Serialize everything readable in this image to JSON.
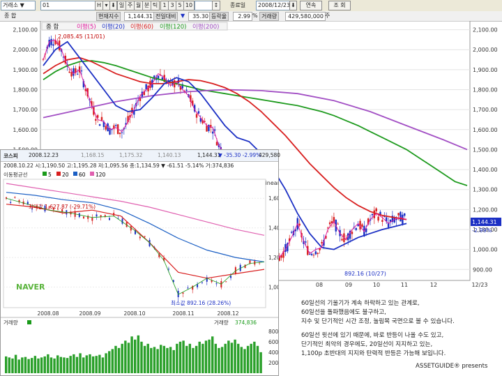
{
  "toolbar": {
    "market": "거래소",
    "code": "01",
    "period_buttons": [
      "H",
      "일",
      "주",
      "월",
      "분",
      "틱"
    ],
    "interval_buttons": [
      "1",
      "3",
      "5",
      "10"
    ],
    "end_date_label": "종료일",
    "end_date": "2008/12/23",
    "continuous_label": "연속",
    "query_label": "조 회"
  },
  "infobar": {
    "name": "종     합",
    "price_label": "현재지수",
    "price": "1,144.31",
    "change_label": "전일대비",
    "change_arrow": "▼",
    "change": "35.30",
    "rate_label": "등락율",
    "rate": "2.99",
    "rate_unit": "%",
    "volume_label": "거래량",
    "volume": "429,580,000",
    "volume_unit": "주"
  },
  "main_chart": {
    "legend_prefix": "종     합",
    "legend": [
      {
        "name": "이평(5)",
        "color": "#e0199c"
      },
      {
        "name": "이평(20)",
        "color": "#1b2fc4"
      },
      {
        "name": "이평(60)",
        "color": "#d81e1e"
      },
      {
        "name": "이평(120)",
        "color": "#1d9a1d"
      },
      {
        "name": "이평(200)",
        "color": "#a24fc4"
      }
    ],
    "high_label": "2,085.45 (11/01)",
    "low_label": "892.16 (10/27)",
    "last_value_label": "1,144.31",
    "last_change_label": "-2.99%",
    "x_ticks": [
      "08",
      "09",
      "10",
      "11",
      "12",
      "12/23"
    ]
  },
  "naver_panel": {
    "tab_title": "코스피",
    "tab_values": [
      "2008.12.23",
      "1,168.15",
      "1,175.32",
      "1,140.13",
      "1,144.31",
      "▼ -35.30 -2.99%",
      "429,580"
    ],
    "ohlc_line": "2008.10.22  시:1,190.50  고:1,195.28  저:1,095.56  종:1,134.59  ▼  -61.51  -5.14%  거:374,836",
    "ma_label": "이동평균선",
    "ma_legend": [
      {
        "name": "5",
        "color": "#1a9a1a"
      },
      {
        "name": "20",
        "color": "#d81e1e"
      },
      {
        "name": "60",
        "color": "#1b5fc4"
      },
      {
        "name": "120",
        "color": "#e060b0"
      }
    ],
    "scale_label": "linear",
    "high_label": "최대값 1,627.87 (-29.71%)",
    "low_label": "최소값 892.16 (28.26%)",
    "logo": "NAVER",
    "x_ticks": [
      "2008.08",
      "2008.09",
      "2008.10",
      "2008.11",
      "2008.12"
    ],
    "volume_title": "거래량",
    "volume_value_label": "거래량",
    "volume_value": "374,836"
  },
  "notes": [
    "60일선의 기울기가 계속 하락하고 있는 관계로,",
    "60일선을 돌파했음에도 불구하고,",
    "지수 및 단기적인 시간 조정, 눌림목 국면으로 볼 수 있습니다.",
    "60일선 윗선에 있기 때문에, 바로 반등이 나올 수도 있고,",
    "단기적인 최악의 경우에도, 20일선이 지지하고 있는,",
    "1,100p 초반대의 지지와 탄력적 반등은 가능해 보입니다."
  ],
  "signature": "ASSETGUIDE® presents",
  "chart_data": [
    {
      "type": "line",
      "title": "",
      "y_axis_ticks": [
        900,
        1000,
        1100,
        1200,
        1300,
        1400,
        1500,
        1600,
        1700,
        1800,
        1900,
        2000,
        2100
      ],
      "ylim": [
        880,
        2130
      ],
      "x_labels": [
        "08",
        "09",
        "10",
        "11",
        "12",
        "12/23"
      ],
      "series": [
        {
          "name": "이평(120)",
          "color": "#1d9a1d",
          "x": [
            0,
            20,
            40,
            60,
            80,
            100,
            120,
            140,
            160,
            180,
            200,
            220,
            240,
            260,
            280,
            300,
            320,
            340,
            360,
            380,
            400,
            420,
            440,
            460,
            480,
            500,
            520,
            540,
            560,
            580,
            600,
            620,
            640,
            660,
            680,
            700
          ],
          "values": [
            1850,
            1890,
            1920,
            1940,
            1945,
            1935,
            1920,
            1900,
            1880,
            1860,
            1845,
            1830,
            1815,
            1800,
            1790,
            1780,
            1770,
            1760,
            1750,
            1740,
            1730,
            1720,
            1705,
            1690,
            1670,
            1645,
            1620,
            1590,
            1560,
            1530,
            1500,
            1460,
            1420,
            1380,
            1340,
            1320
          ]
        },
        {
          "name": "이평(200)",
          "color": "#a24fc4",
          "x": [
            0,
            60,
            120,
            180,
            240,
            300,
            360,
            420,
            480,
            540,
            600,
            660,
            700
          ],
          "values": [
            1660,
            1700,
            1740,
            1770,
            1790,
            1800,
            1795,
            1780,
            1745,
            1690,
            1620,
            1550,
            1500
          ]
        },
        {
          "name": "이평(60)",
          "color": "#d81e1e",
          "x": [
            0,
            20,
            40,
            60,
            80,
            100,
            120,
            140,
            160,
            180,
            200,
            220,
            240,
            260,
            280,
            300,
            320,
            340,
            360,
            380,
            400,
            420,
            440,
            460,
            480,
            500,
            520,
            540,
            560,
            580,
            600
          ],
          "values": [
            1880,
            1920,
            1950,
            1960,
            1940,
            1910,
            1880,
            1860,
            1840,
            1830,
            1830,
            1840,
            1850,
            1845,
            1830,
            1810,
            1780,
            1740,
            1690,
            1630,
            1570,
            1500,
            1430,
            1370,
            1310,
            1260,
            1220,
            1190,
            1170,
            1160,
            1150
          ]
        },
        {
          "name": "이평(20)",
          "color": "#1b2fc4",
          "x": [
            0,
            20,
            40,
            60,
            80,
            100,
            120,
            140,
            160,
            180,
            200,
            220,
            240,
            260,
            280,
            300,
            320,
            340,
            360,
            380,
            400,
            420,
            440,
            460,
            480,
            500,
            520,
            540,
            560,
            580,
            600
          ],
          "values": [
            1920,
            2000,
            2040,
            1960,
            1880,
            1800,
            1720,
            1690,
            1700,
            1760,
            1830,
            1860,
            1840,
            1780,
            1700,
            1620,
            1560,
            1540,
            1480,
            1400,
            1300,
            1180,
            1080,
            1010,
            1000,
            1030,
            1060,
            1080,
            1100,
            1115,
            1130
          ]
        },
        {
          "name": "이평(5)",
          "color": "#e0199c",
          "x": [
            0,
            10,
            20,
            30,
            40,
            50,
            60,
            70,
            80,
            90,
            100,
            110,
            120,
            130,
            140,
            150,
            160,
            170,
            180,
            190,
            200,
            210,
            220,
            230,
            240,
            250,
            260,
            270,
            280,
            290,
            300,
            310,
            320,
            330,
            340,
            350,
            360,
            370,
            380,
            390,
            400,
            410,
            420,
            430,
            440,
            450,
            460,
            470,
            480,
            490,
            500,
            510,
            520,
            530,
            540,
            550,
            560,
            570,
            580,
            590,
            600
          ],
          "values": [
            1950,
            2040,
            2050,
            2000,
            1920,
            1880,
            1900,
            1810,
            1720,
            1650,
            1640,
            1600,
            1610,
            1590,
            1640,
            1700,
            1770,
            1800,
            1830,
            1880,
            1860,
            1820,
            1840,
            1800,
            1770,
            1700,
            1660,
            1620,
            1610,
            1520,
            1480,
            1420,
            1380,
            1460,
            1420,
            1330,
            1250,
            1180,
            1050,
            960,
            1000,
            1060,
            1130,
            1040,
            980,
            1000,
            1010,
            1100,
            1140,
            1080,
            1050,
            1100,
            1130,
            1090,
            1150,
            1180,
            1160,
            1130,
            1150,
            1160,
            1150
          ]
        }
      ]
    },
    {
      "type": "line",
      "title": "",
      "y_axis_ticks": [
        1000,
        1200,
        1400,
        1600
      ],
      "ylim": [
        880,
        1700
      ],
      "x_labels": [
        "2008.08",
        "2008.09",
        "2008.10",
        "2008.11",
        "2008.12"
      ],
      "series": [
        {
          "name": "120",
          "color": "#e060b0",
          "x": [
            0,
            40,
            80,
            120,
            160,
            200,
            240,
            280,
            320,
            360
          ],
          "values": [
            1700,
            1670,
            1640,
            1610,
            1580,
            1540,
            1490,
            1440,
            1390,
            1350
          ]
        },
        {
          "name": "60",
          "color": "#1b5fc4",
          "x": [
            0,
            40,
            80,
            120,
            160,
            200,
            240,
            280,
            320,
            360
          ],
          "values": [
            1640,
            1620,
            1590,
            1570,
            1520,
            1430,
            1330,
            1250,
            1200,
            1170
          ]
        },
        {
          "name": "20",
          "color": "#d81e1e",
          "x": [
            0,
            40,
            80,
            120,
            160,
            200,
            240,
            280,
            320,
            360
          ],
          "values": [
            1560,
            1540,
            1500,
            1520,
            1480,
            1300,
            1100,
            1060,
            1090,
            1120
          ]
        },
        {
          "name": "5",
          "color": "#1a9a1a",
          "x": [
            0,
            30,
            60,
            90,
            120,
            150,
            180,
            200,
            220,
            240,
            260,
            280,
            300,
            320,
            340,
            360
          ],
          "values": [
            1600,
            1560,
            1520,
            1500,
            1470,
            1480,
            1380,
            1300,
            1180,
            950,
            1000,
            1060,
            1020,
            1110,
            1160,
            1170
          ]
        }
      ]
    },
    {
      "type": "bar",
      "title": "",
      "y_axis_ticks": [
        0,
        200,
        400,
        600,
        800
      ],
      "ylim": [
        0,
        850
      ],
      "values": [
        320,
        300,
        280,
        350,
        260,
        300,
        310,
        270,
        290,
        330,
        280,
        300,
        320,
        360,
        300,
        280,
        340,
        310,
        300,
        290,
        330,
        360,
        310,
        380,
        300,
        340,
        360,
        320,
        330,
        350,
        300,
        380,
        420,
        460,
        520,
        480,
        560,
        620,
        580,
        700,
        640,
        720,
        600,
        520,
        560,
        480,
        500,
        460,
        540,
        520,
        480,
        500,
        440,
        560,
        600,
        620,
        520,
        560,
        480,
        520,
        600,
        560,
        620,
        640,
        700,
        560,
        480,
        500,
        560,
        620,
        580,
        640,
        560,
        500,
        460,
        520,
        560,
        600,
        520,
        400
      ]
    }
  ]
}
